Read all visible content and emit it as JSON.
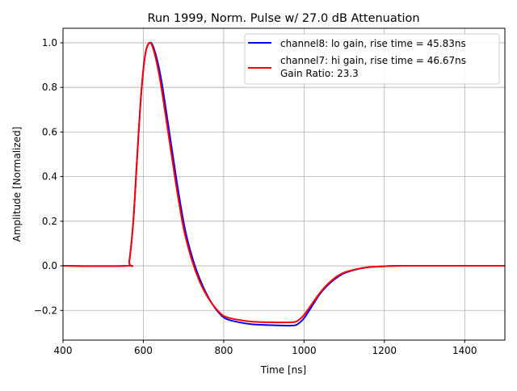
{
  "chart_data": {
    "type": "line",
    "title": "Run 1999, Norm. Pulse w/ 27.0 dB Attenuation",
    "xlabel": "Time [ns]",
    "ylabel": "Amplitude [Normalized]",
    "xlim": [
      400,
      1500
    ],
    "ylim": [
      -0.333,
      1.065
    ],
    "xticks": [
      400,
      600,
      800,
      1000,
      1200,
      1400
    ],
    "xtick_labels": [
      "400",
      "600",
      "800",
      "1000",
      "1200",
      "1400"
    ],
    "yticks": [
      -0.2,
      0.0,
      0.2,
      0.4,
      0.6,
      0.8,
      1.0
    ],
    "ytick_labels": [
      "−0.2",
      "0.0",
      "0.2",
      "0.4",
      "0.6",
      "0.8",
      "1.0"
    ],
    "grid": true,
    "legend_position": "top-right",
    "legend_note": "Gain Ratio: 23.3",
    "series": [
      {
        "name": "channel8: lo gain, rise time = 45.83ns",
        "color": "#0000ff",
        "x": [
          400,
          560,
          565,
          575,
          585,
          595,
          605,
          616,
          627,
          643,
          663,
          683,
          703,
          723,
          743,
          763,
          783,
          803,
          830,
          870,
          920,
          970,
          985,
          1000,
          1020,
          1040,
          1060,
          1080,
          1100,
          1130,
          1160,
          1200,
          1250,
          1500
        ],
        "y": [
          0,
          0,
          0.02,
          0.2,
          0.5,
          0.78,
          0.95,
          1.0,
          0.97,
          0.85,
          0.62,
          0.38,
          0.17,
          0.03,
          -0.07,
          -0.145,
          -0.2,
          -0.235,
          -0.25,
          -0.262,
          -0.266,
          -0.268,
          -0.26,
          -0.235,
          -0.18,
          -0.125,
          -0.085,
          -0.055,
          -0.033,
          -0.016,
          -0.006,
          -0.002,
          0,
          0
        ]
      },
      {
        "name": "channel7: hi gain, rise time = 46.67ns",
        "color": "#ff0000",
        "x": [
          400,
          560,
          565,
          575,
          585,
          595,
          605,
          615,
          625,
          640,
          660,
          680,
          700,
          720,
          740,
          760,
          780,
          800,
          830,
          870,
          920,
          970,
          985,
          1000,
          1020,
          1040,
          1060,
          1080,
          1100,
          1130,
          1160,
          1200,
          1250,
          1500
        ],
        "y": [
          0,
          0,
          0.02,
          0.2,
          0.5,
          0.78,
          0.95,
          1.0,
          0.97,
          0.85,
          0.62,
          0.38,
          0.17,
          0.03,
          -0.07,
          -0.14,
          -0.19,
          -0.225,
          -0.24,
          -0.25,
          -0.253,
          -0.253,
          -0.245,
          -0.22,
          -0.17,
          -0.12,
          -0.08,
          -0.05,
          -0.03,
          -0.015,
          -0.006,
          -0.002,
          0,
          0
        ]
      }
    ]
  }
}
